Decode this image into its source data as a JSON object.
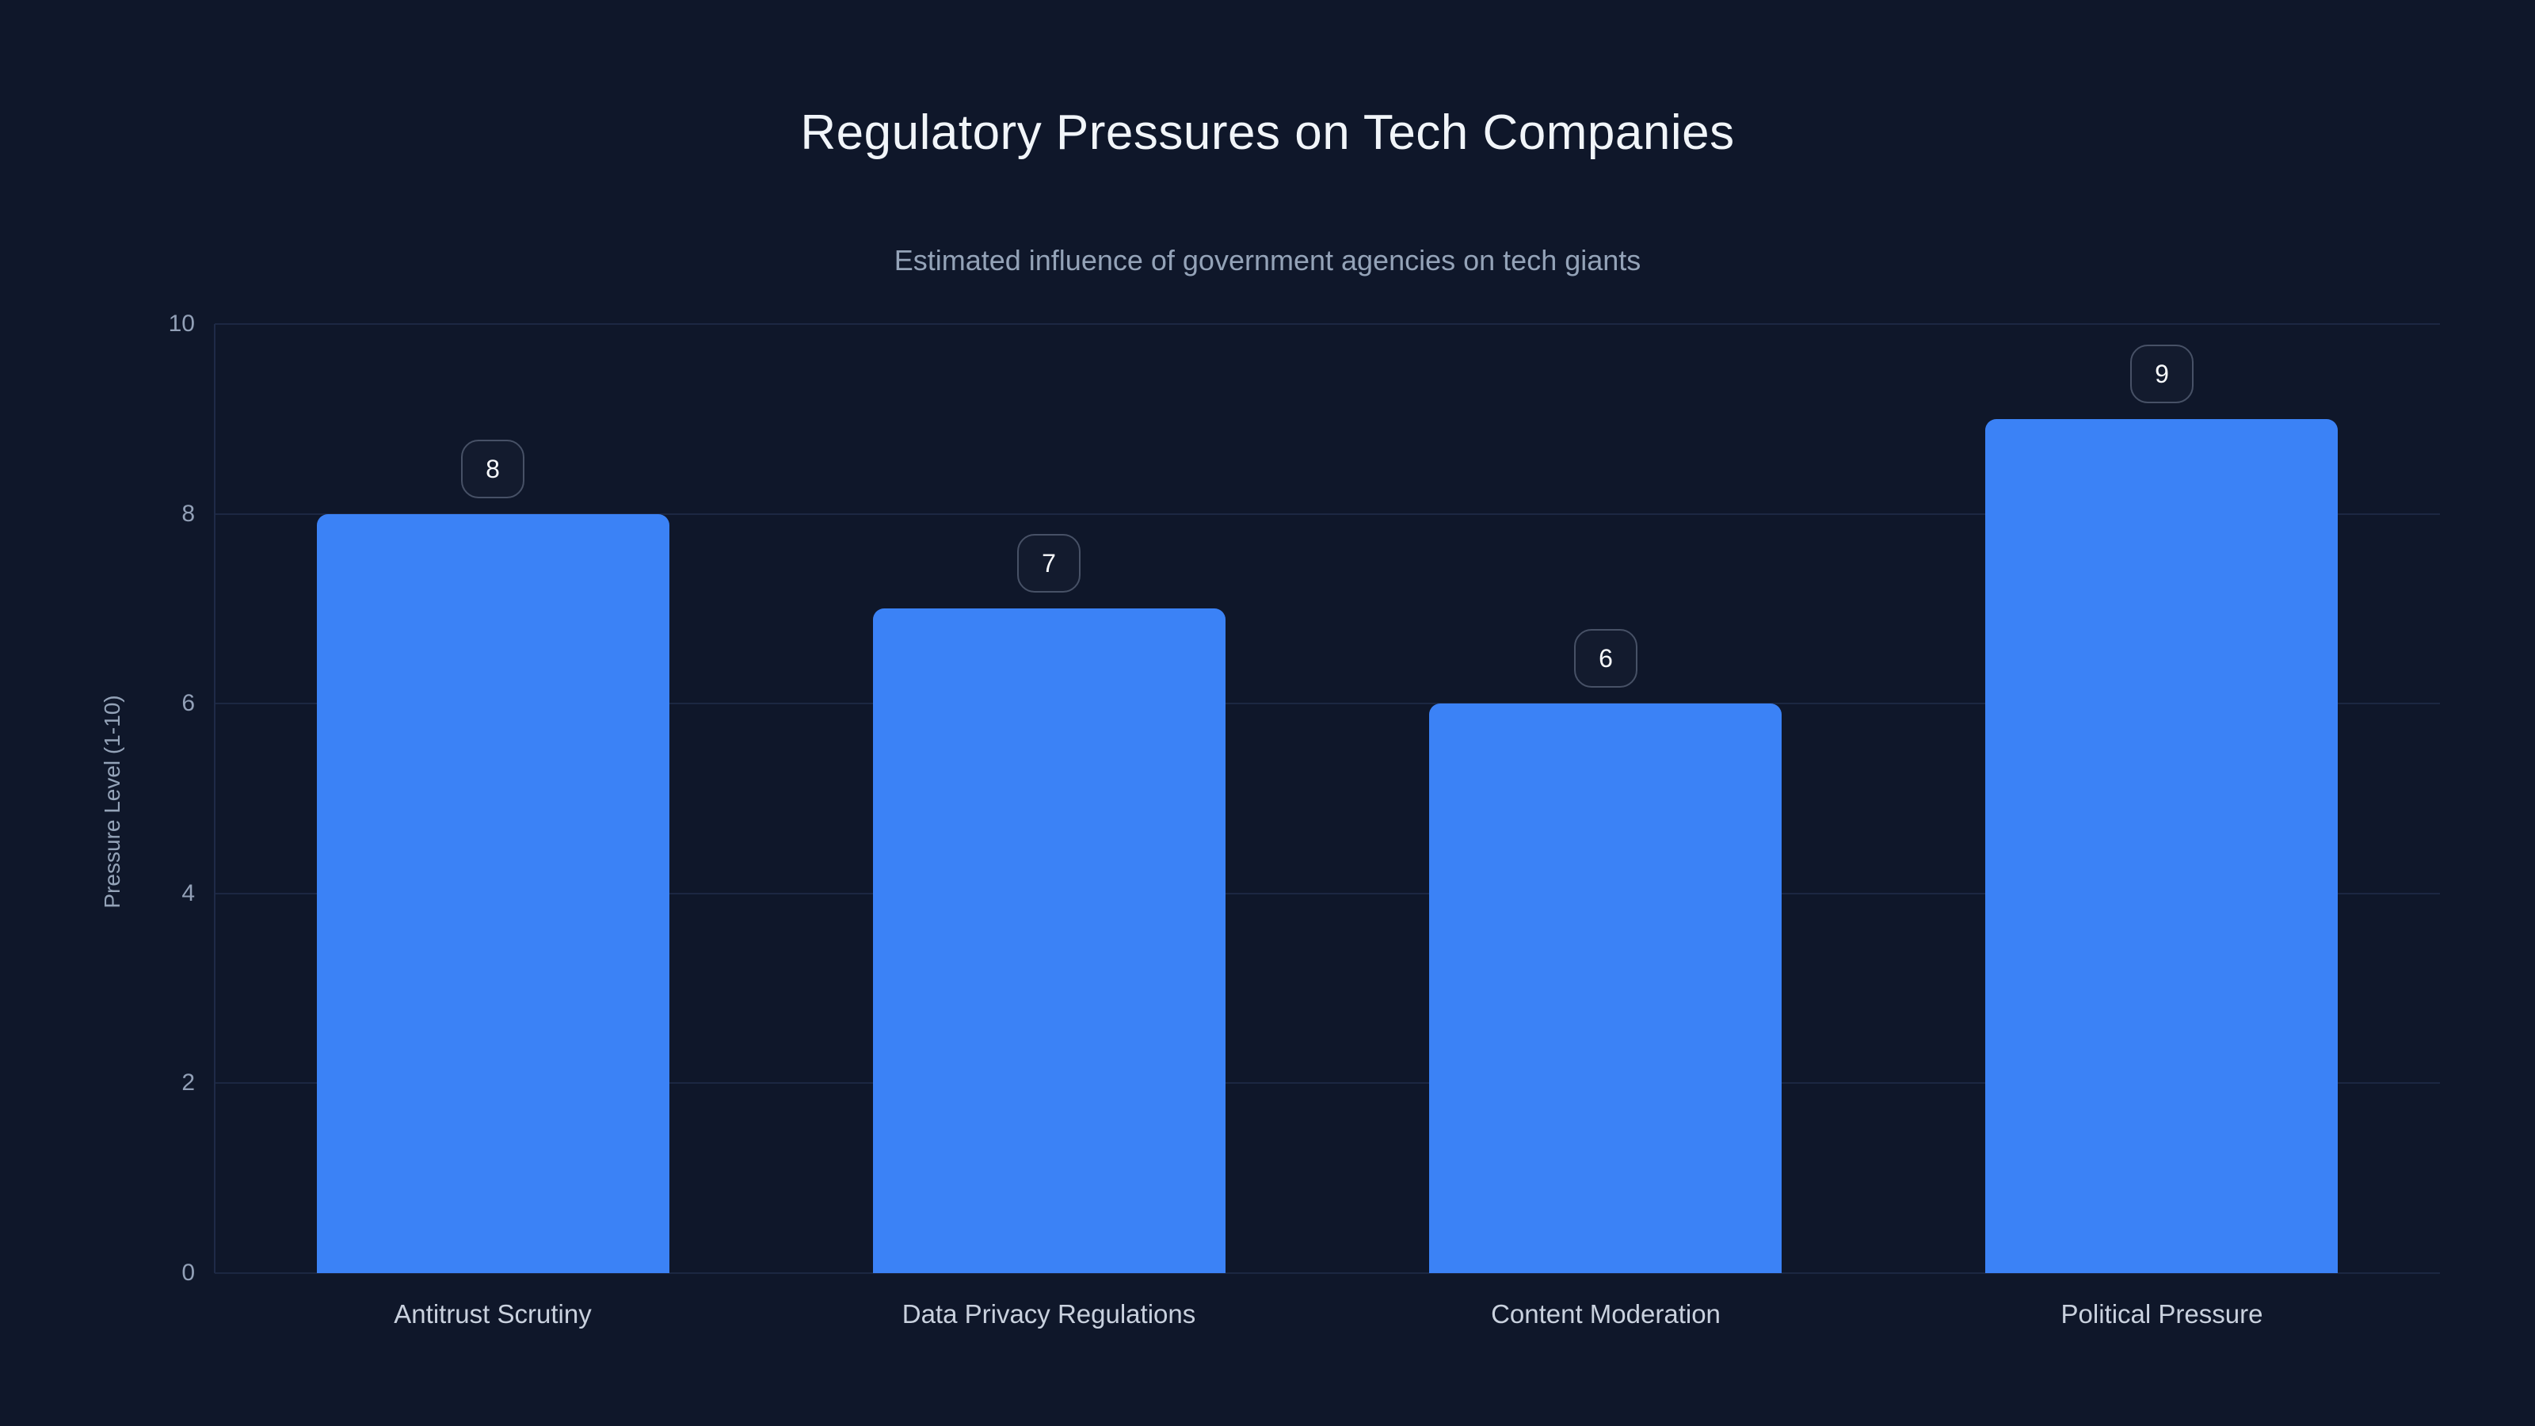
{
  "chart_data": {
    "type": "bar",
    "title": "Regulatory Pressures on Tech Companies",
    "subtitle": "Estimated influence of government agencies on tech giants",
    "ylabel": "Pressure Level (1-10)",
    "xlabel": "",
    "categories": [
      "Antitrust Scrutiny",
      "Data Privacy Regulations",
      "Content Moderation",
      "Political Pressure"
    ],
    "values": [
      8,
      7,
      6,
      9
    ],
    "value_labels": [
      "8",
      "7",
      "6",
      "9"
    ],
    "ylim": [
      0,
      10
    ],
    "yticks": [
      0,
      2,
      4,
      6,
      8,
      10
    ],
    "grid": true,
    "legend": false
  },
  "style": {
    "background": "#0f172a",
    "bar_color": "#3b82f6",
    "grid_color": "#1c2742",
    "axis_color": "#1f2b48",
    "title_color": "#f1f5f9",
    "subtitle_color": "#94a3b8",
    "tick_color": "#92a0b7",
    "x_label_color": "#c9d1de",
    "badge_border_color": "#475166",
    "badge_text_color": "#f8fafc"
  }
}
